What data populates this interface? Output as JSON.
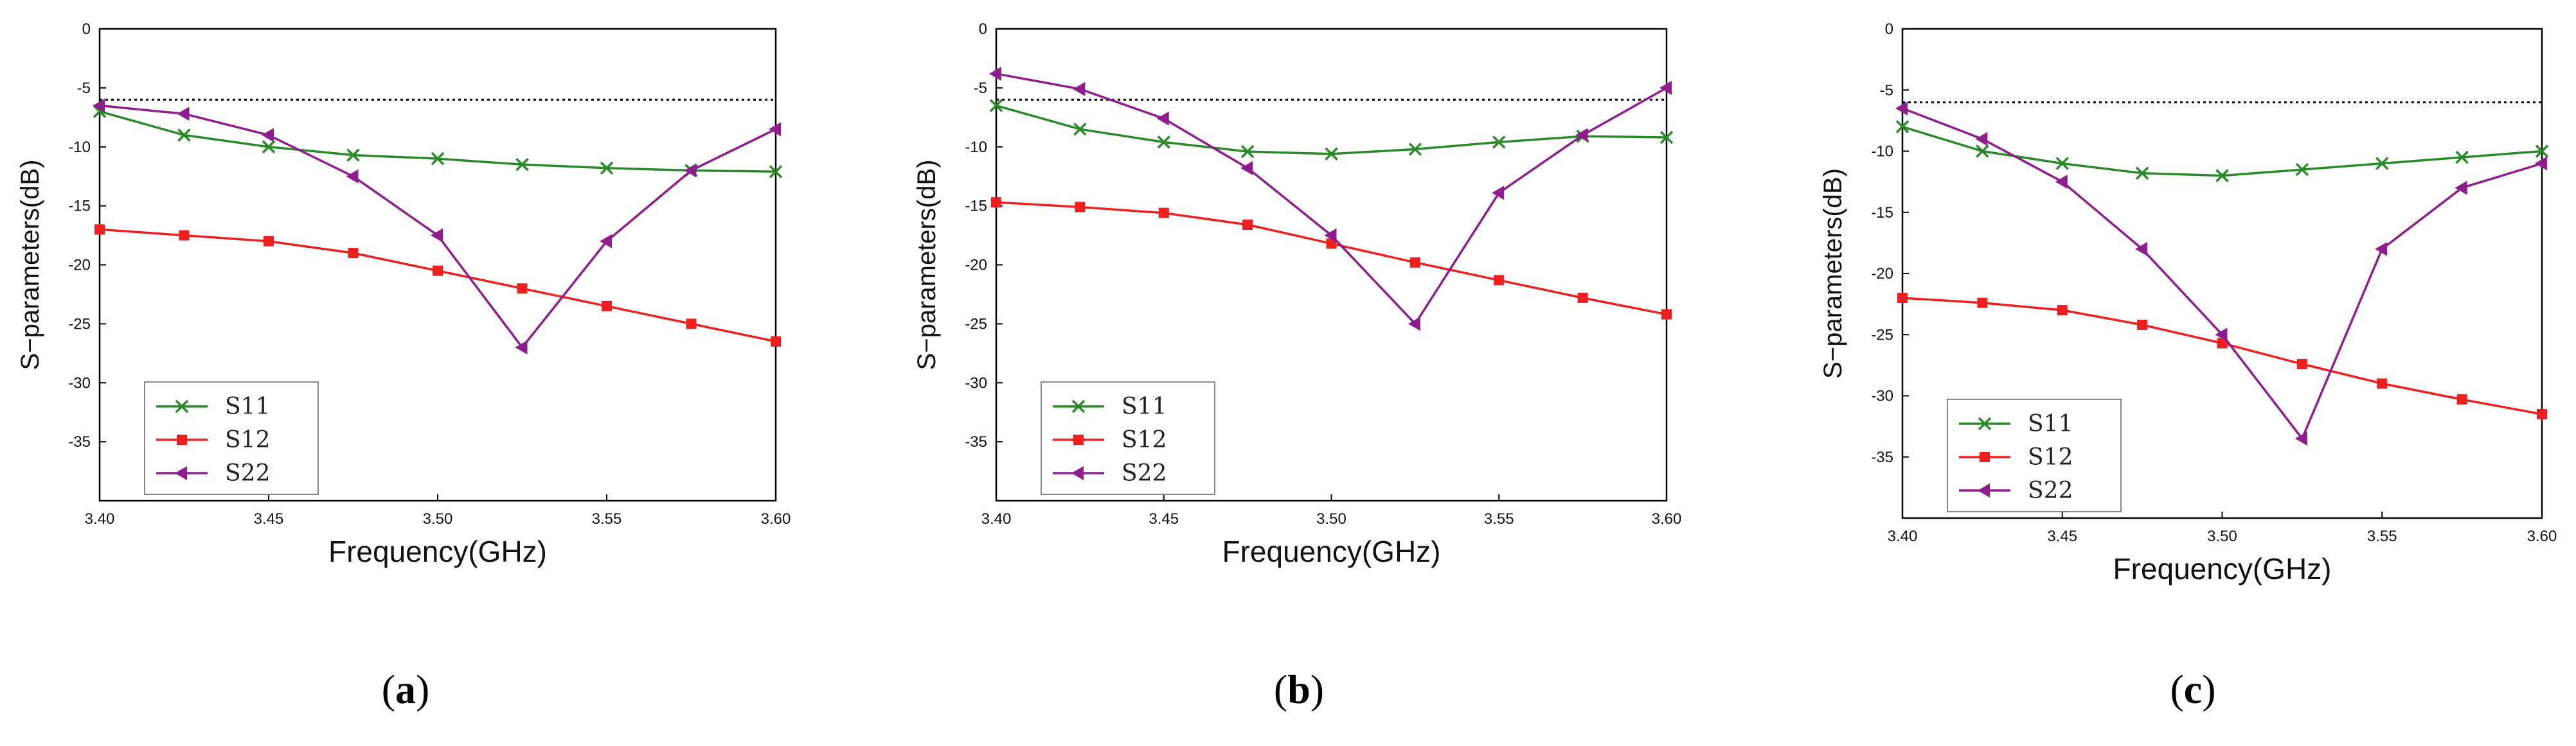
{
  "chart_data": [
    {
      "type": "line",
      "panel": "a",
      "caption": "a",
      "xlabel": "Frequency(GHz)",
      "ylabel": "S−parameters(dB)",
      "xlim": [
        3.4,
        3.6
      ],
      "ylim": [
        -40,
        0
      ],
      "xticks": [
        "3.40",
        "3.45",
        "3.50",
        "3.55",
        "3.60"
      ],
      "yticks": [
        "0",
        "-5",
        "-10",
        "-15",
        "-20",
        "-25",
        "-30",
        "-35"
      ],
      "reference_line": -6,
      "legend_position": "bottom-left",
      "x": [
        3.4,
        3.425,
        3.45,
        3.475,
        3.5,
        3.525,
        3.55,
        3.575,
        3.6
      ],
      "series": [
        {
          "name": "S11",
          "color": "#2a8a2a",
          "marker": "x",
          "values": [
            -7.0,
            -9.0,
            -10.0,
            -10.7,
            -11.0,
            -11.5,
            -11.8,
            -12.0,
            -12.1
          ]
        },
        {
          "name": "S12",
          "color": "#ee1f1f",
          "marker": "square",
          "values": [
            -17.0,
            -17.5,
            -18.0,
            -19.0,
            -20.5,
            -22.0,
            -23.5,
            -25.0,
            -26.5
          ]
        },
        {
          "name": "S22",
          "color": "#8e1e8e",
          "marker": "triangle-left",
          "values": [
            -6.5,
            -7.2,
            -9.0,
            -12.5,
            -17.5,
            -27.0,
            -18.0,
            -12.0,
            -8.5
          ]
        }
      ]
    },
    {
      "type": "line",
      "panel": "b",
      "caption": "b",
      "xlabel": "Frequency(GHz)",
      "ylabel": "S−parameters(dB)",
      "xlim": [
        3.4,
        3.6
      ],
      "ylim": [
        -40,
        0
      ],
      "xticks": [
        "3.40",
        "3.45",
        "3.50",
        "3.55",
        "3.60"
      ],
      "yticks": [
        "0",
        "-5",
        "-10",
        "-15",
        "-20",
        "-25",
        "-30",
        "-35"
      ],
      "reference_line": -6,
      "legend_position": "bottom-left",
      "x": [
        3.4,
        3.425,
        3.45,
        3.475,
        3.5,
        3.525,
        3.55,
        3.575,
        3.6
      ],
      "series": [
        {
          "name": "S11",
          "color": "#2a8a2a",
          "marker": "x",
          "values": [
            -6.5,
            -8.5,
            -9.6,
            -10.4,
            -10.6,
            -10.2,
            -9.6,
            -9.1,
            -9.2
          ]
        },
        {
          "name": "S12",
          "color": "#ee1f1f",
          "marker": "square",
          "values": [
            -14.7,
            -15.1,
            -15.6,
            -16.6,
            -18.2,
            -19.8,
            -21.3,
            -22.8,
            -24.2
          ]
        },
        {
          "name": "S22",
          "color": "#8e1e8e",
          "marker": "triangle-left",
          "values": [
            -3.8,
            -5.1,
            -7.6,
            -11.8,
            -17.5,
            -25.0,
            -13.9,
            -9.0,
            -5.0
          ]
        }
      ]
    },
    {
      "type": "line",
      "panel": "c",
      "caption": "c",
      "xlabel": "Frequency(GHz)",
      "ylabel": "S−parameters(dB)",
      "xlim": [
        3.4,
        3.6
      ],
      "ylim": [
        -40,
        0
      ],
      "xticks": [
        "3.40",
        "3.45",
        "3.50",
        "3.55",
        "3.60"
      ],
      "yticks": [
        "0",
        "-5",
        "-10",
        "-15",
        "-20",
        "-25",
        "-30",
        "-35"
      ],
      "reference_line": -6,
      "legend_position": "bottom-left",
      "x": [
        3.4,
        3.425,
        3.45,
        3.475,
        3.5,
        3.525,
        3.55,
        3.575,
        3.6
      ],
      "series": [
        {
          "name": "S11",
          "color": "#2a8a2a",
          "marker": "x",
          "values": [
            -8.0,
            -10.0,
            -11.0,
            -11.8,
            -12.0,
            -11.5,
            -11.0,
            -10.5,
            -10.0
          ]
        },
        {
          "name": "S12",
          "color": "#ee1f1f",
          "marker": "square",
          "values": [
            -22.0,
            -22.4,
            -23.0,
            -24.2,
            -25.7,
            -27.4,
            -29.0,
            -30.3,
            -31.5
          ]
        },
        {
          "name": "S22",
          "color": "#8e1e8e",
          "marker": "triangle-left",
          "values": [
            -6.5,
            -9.0,
            -12.5,
            -18.0,
            -25.0,
            -33.5,
            -18.0,
            -13.0,
            -11.0
          ]
        }
      ]
    }
  ]
}
